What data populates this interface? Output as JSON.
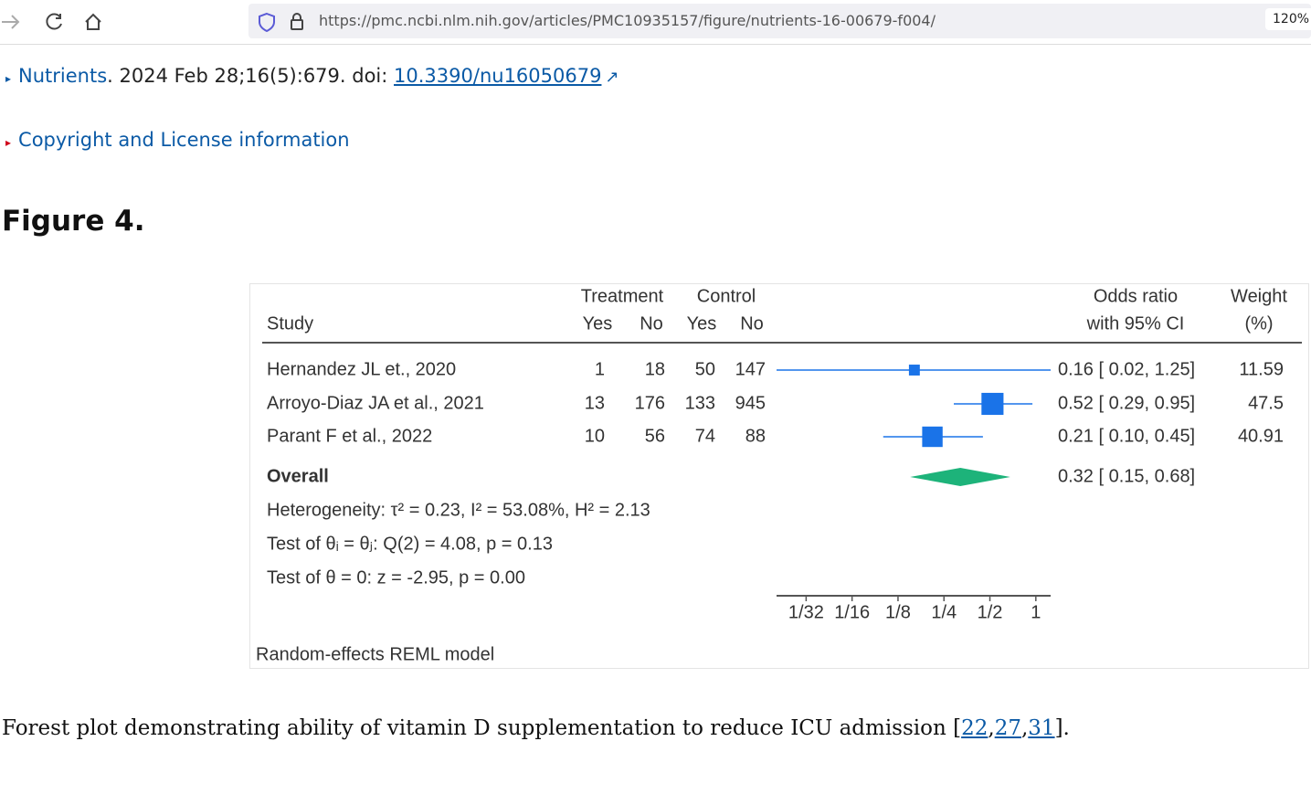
{
  "browser": {
    "url": "https://pmc.ncbi.nlm.nih.gov/articles/PMC10935157/figure/nutrients-16-00679-f004/",
    "zoom": "120%"
  },
  "citation": {
    "journal": "Nutrients",
    "details": ". 2024 Feb 28;16(5):679. doi: ",
    "doi": "10.3390/nu16050679"
  },
  "copyright": "Copyright and License information",
  "figure_title": "Figure 4.",
  "forest_plot": {
    "type": "forest",
    "headers": {
      "study": "Study",
      "treatment": "Treatment",
      "control": "Control",
      "yes": "Yes",
      "no": "No",
      "or_title": "Odds ratio",
      "or_subtitle": "with 95% CI",
      "weight_title": "Weight",
      "weight_subtitle": "(%)"
    },
    "studies": [
      {
        "name": "Hernandez JL et., 2020",
        "treat_yes": 1,
        "treat_no": 18,
        "ctrl_yes": 50,
        "ctrl_no": 147,
        "or": 0.16,
        "ci_low": 0.02,
        "ci_high": 1.25,
        "or_label": "0.16 [ 0.02,  1.25]",
        "weight": 11.59
      },
      {
        "name": "Arroyo-Diaz JA et al., 2021",
        "treat_yes": 13,
        "treat_no": 176,
        "ctrl_yes": 133,
        "ctrl_no": 945,
        "or": 0.52,
        "ci_low": 0.29,
        "ci_high": 0.95,
        "or_label": "0.52 [ 0.29,  0.95]",
        "weight": 47.5
      },
      {
        "name": "Parant F et al., 2022",
        "treat_yes": 10,
        "treat_no": 56,
        "ctrl_yes": 74,
        "ctrl_no": 88,
        "or": 0.21,
        "ci_low": 0.1,
        "ci_high": 0.45,
        "or_label": "0.21 [ 0.10,  0.45]",
        "weight": 40.91
      }
    ],
    "overall": {
      "name": "Overall",
      "or": 0.32,
      "ci_low": 0.15,
      "ci_high": 0.68,
      "or_label": "0.32 [ 0.15,  0.68]"
    },
    "heterogeneity": "Heterogeneity: τ² = 0.23, I² = 53.08%, H² = 2.13",
    "test_theta_i": "Test of θᵢ = θⱼ: Q(2) = 4.08, p = 0.13",
    "test_theta_0": "Test of θ = 0: z = -2.95, p  = 0.00",
    "model": "Random-effects REML model",
    "xlog": true,
    "xlim": [
      0.02,
      1.25
    ],
    "xticks": [
      {
        "value": 0.03125,
        "label": "1/32"
      },
      {
        "value": 0.0625,
        "label": "1/16"
      },
      {
        "value": 0.125,
        "label": "1/8"
      },
      {
        "value": 0.25,
        "label": "1/4"
      },
      {
        "value": 0.5,
        "label": "1/2"
      },
      1
    ],
    "study_color": "#1a73e8",
    "overall_color": "#1db37a"
  },
  "caption": {
    "text": "Forest plot demonstrating ability of vitamin D supplementation to reduce ICU admission [",
    "refs": [
      "22",
      "27",
      "31"
    ],
    "separator": ",",
    "close": "]."
  }
}
